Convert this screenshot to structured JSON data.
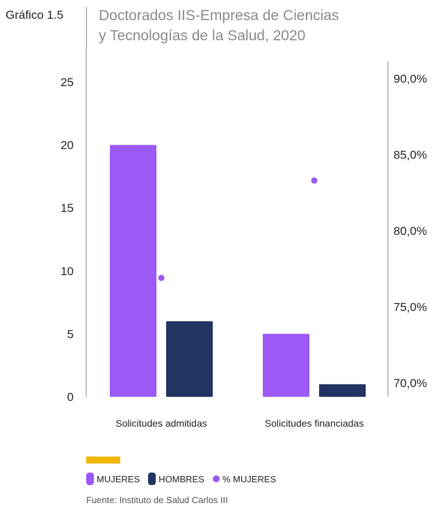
{
  "figure_label": "Gráfico 1.5",
  "title_line1": "Doctorados IIS-Empresa de Ciencias",
  "title_line2": "y Tecnologías de la Salud, 2020",
  "source": "Fuente: Instituto de Salud Carlos III",
  "colors": {
    "mujeres": "#9b59f6",
    "hombres": "#223462",
    "pct": "#9b59f6",
    "accent": "#f2b705",
    "axis": "#8a8a8a"
  },
  "legend": [
    {
      "label": "MUJERES",
      "key": "mujeres",
      "shape": "bar"
    },
    {
      "label": "HOMBRES",
      "key": "hombres",
      "shape": "bar"
    },
    {
      "label": "% MUJERES",
      "key": "pct",
      "shape": "dot"
    }
  ],
  "chart_data": {
    "type": "bar",
    "categories": [
      "Solicitudes admitidas",
      "Solicitudes financiadas"
    ],
    "series": [
      {
        "name": "MUJERES",
        "values": [
          20,
          5
        ],
        "axis": "left"
      },
      {
        "name": "HOMBRES",
        "values": [
          6,
          1
        ],
        "axis": "left"
      },
      {
        "name": "% MUJERES",
        "values": [
          76.9,
          83.3
        ],
        "axis": "right",
        "type": "scatter"
      }
    ],
    "ylim": [
      0,
      25
    ],
    "y_ticks": [
      "0",
      "5",
      "10",
      "15",
      "20",
      "25"
    ],
    "y2lim": [
      70,
      90
    ],
    "y2_ticks": [
      "70,0%",
      "75,0%",
      "80,0%",
      "85,0%",
      "90,0%"
    ],
    "grid": false
  }
}
